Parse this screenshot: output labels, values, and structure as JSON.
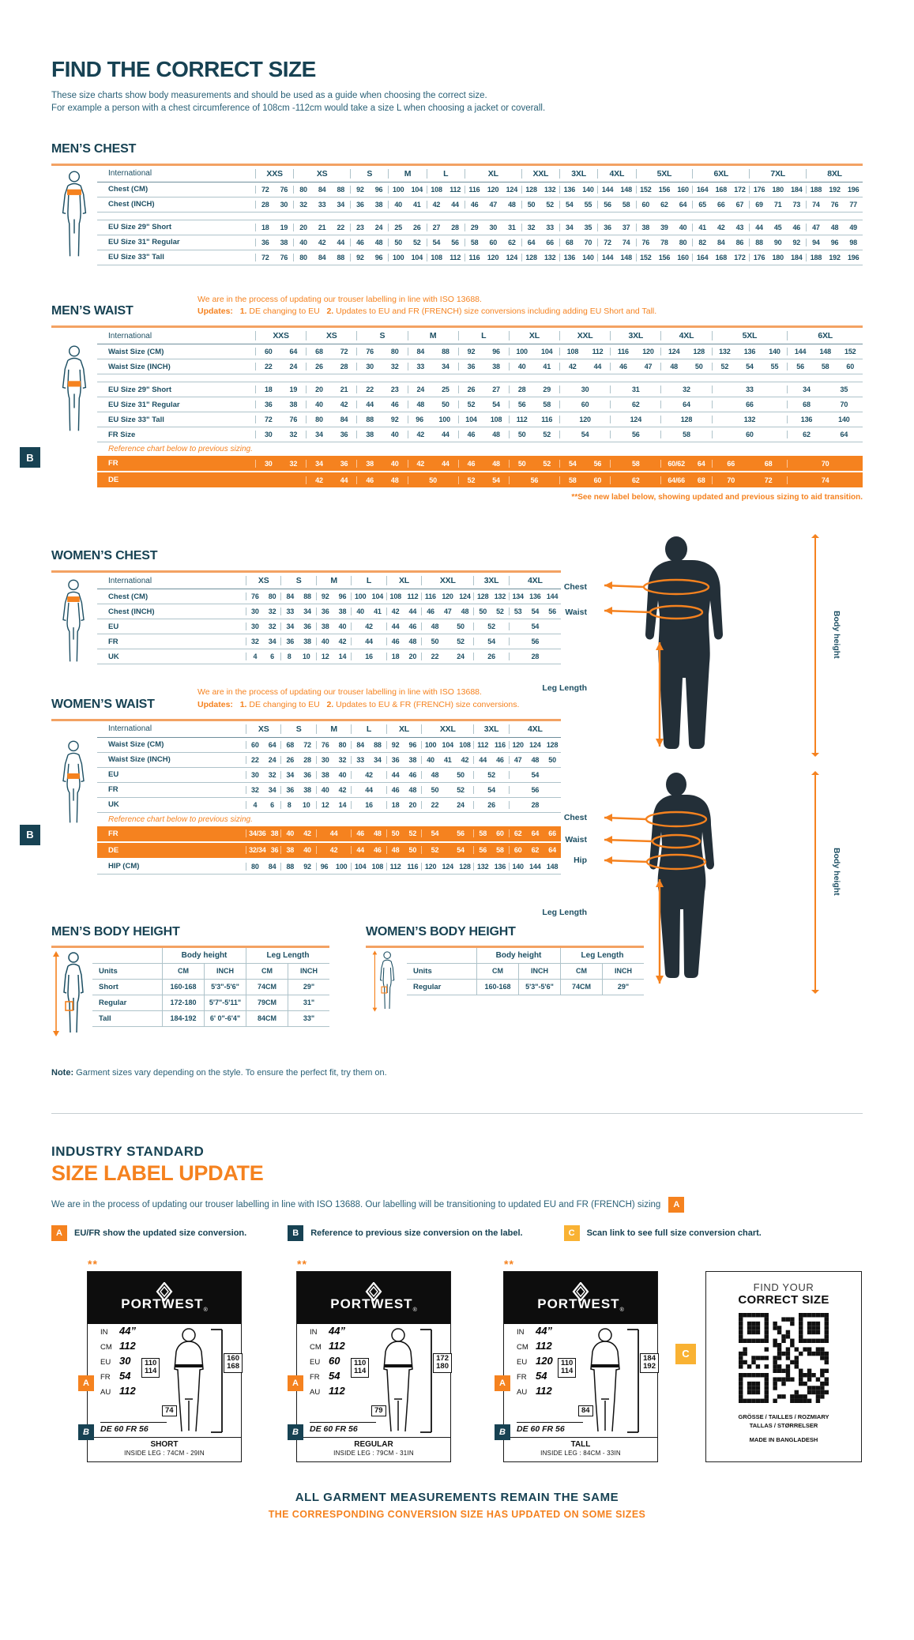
{
  "header": {
    "title": "FIND THE CORRECT SIZE",
    "lead1": "These size charts show body measurements and should be used as a guide when choosing the correct size.",
    "lead2": "For example a person with a chest circumference of 108cm -112cm would take a size L when choosing a jacket or coverall."
  },
  "tables": {
    "mens_chest": {
      "title": "MEN’S CHEST",
      "label_header": "International",
      "label_w": 200,
      "columns": [
        {
          "label": "XXS",
          "span": 2
        },
        {
          "label": "XS",
          "span": 3
        },
        {
          "label": "S",
          "span": 2
        },
        {
          "label": "M",
          "span": 2
        },
        {
          "label": "L",
          "span": 2
        },
        {
          "label": "XL",
          "span": 3
        },
        {
          "label": "XXL",
          "span": 2
        },
        {
          "label": "3XL",
          "span": 2
        },
        {
          "label": "4XL",
          "span": 2
        },
        {
          "label": "5XL",
          "span": 3
        },
        {
          "label": "6XL",
          "span": 3
        },
        {
          "label": "7XL",
          "span": 3
        },
        {
          "label": "8XL",
          "span": 3
        }
      ],
      "rows": [
        {
          "label": "Chest (CM)",
          "cells": [
            "72 76",
            "80 84 88",
            "92 96",
            "100 104",
            "108 112",
            "116 120 124",
            "128 132",
            "136 140",
            "144 148",
            "152 156 160",
            "164 168 172",
            "176 180 184",
            "188 192 196"
          ]
        },
        {
          "label": "Chest (INCH)",
          "cells": [
            "28 30",
            "32 33 34",
            "36 38",
            "40 41",
            "42 44",
            "46 47 48",
            "50 52",
            "54 55",
            "56 58",
            "60 62 64",
            "65 66 67",
            "69 71 73",
            "74 76 77"
          ]
        },
        {
          "type": "spacer"
        },
        {
          "label": "EU Size 29\" Short",
          "cells": [
            "18 19",
            "20 21 22",
            "23 24",
            "25 26",
            "27 28",
            "29 30 31",
            "32 33",
            "34 35",
            "36 37",
            "38 39 40",
            "41 42 43",
            "44 45 46",
            "47 48 49"
          ]
        },
        {
          "label": "EU Size 31\" Regular",
          "cells": [
            "36 38",
            "40 42 44",
            "46 48",
            "50 52",
            "54 56",
            "58 60 62",
            "64 66",
            "68 70",
            "72 74",
            "76 78 80",
            "82 84 86",
            "88 90 92",
            "94 96 98"
          ]
        },
        {
          "label": "EU Size 33\" Tall",
          "cells": [
            "72 76",
            "80 84 88",
            "92 96",
            "100 104",
            "108 112",
            "116 120 124",
            "128 132",
            "136 140",
            "144 148",
            "152 156 160",
            "164 168 172",
            "176 180 184",
            "188 192 196"
          ]
        }
      ]
    },
    "mens_waist": {
      "title": "MEN’S WAIST",
      "label_header": "International",
      "label_w": 200,
      "note": {
        "line1": "We are in the process of updating our trouser labelling in line with ISO 13688.",
        "updates_label": "Updates:",
        "item1_num": "1.",
        "item1": "DE changing to EU",
        "item2_num": "2.",
        "item2": "Updates to EU and FR (FRENCH) size conversions including adding EU Short and Tall."
      },
      "reference_text": "Reference chart below to previous sizing.",
      "badge_b": "B",
      "footnote": "**See new label below, showing updated and previous sizing to aid transition.",
      "columns": [
        {
          "label": "XXS",
          "span": 2
        },
        {
          "label": "XS",
          "span": 2
        },
        {
          "label": "S",
          "span": 2
        },
        {
          "label": "M",
          "span": 2
        },
        {
          "label": "L",
          "span": 2
        },
        {
          "label": "XL",
          "span": 2
        },
        {
          "label": "XXL",
          "span": 2
        },
        {
          "label": "3XL",
          "span": 2
        },
        {
          "label": "4XL",
          "span": 2
        },
        {
          "label": "5XL",
          "span": 3
        },
        {
          "label": "6XL",
          "span": 3
        }
      ],
      "rows": [
        {
          "label": "Waist Size (CM)",
          "cells": [
            "60 64",
            "68 72",
            "76 80",
            "84 88",
            "92 96",
            "100 104",
            "108 112",
            "116 120",
            "124 128",
            "132 136 140",
            "144 148 152"
          ]
        },
        {
          "label": "Waist Size (INCH)",
          "cells": [
            "22 24",
            "26 28",
            "30 32",
            "33 34",
            "36 38",
            "40 41",
            "42 44",
            "46 47",
            "48 50",
            "52 54 55",
            "56 58 60"
          ]
        },
        {
          "type": "spacer"
        },
        {
          "label": "EU Size 29\" Short",
          "cells": [
            "18 19",
            "20 21",
            "22 23",
            "24 25",
            "26 27",
            "28 29",
            "30",
            "31",
            "32",
            "33",
            "34 35"
          ]
        },
        {
          "label": "EU Size 31\" Regular",
          "cells": [
            "36 38",
            "40 42",
            "44 46",
            "48 50",
            "52 54",
            "56 58",
            "60",
            "62",
            "64",
            "66",
            "68 70"
          ]
        },
        {
          "label": "EU Size 33\" Tall",
          "cells": [
            "72 76",
            "80 84",
            "88 92",
            "96 100",
            "104 108",
            "112 116",
            "120",
            "124",
            "128",
            "132",
            "136 140"
          ]
        },
        {
          "label": "FR Size",
          "cells": [
            "30 32",
            "34 36",
            "38 40",
            "42 44",
            "46 48",
            "50 52",
            "54",
            "56",
            "58",
            "60",
            "62 64"
          ]
        },
        {
          "type": "ref"
        },
        {
          "label": "FR",
          "variant": "orange",
          "cells": [
            "30 32",
            "34 36",
            "38 40",
            "42 44",
            "46 48",
            "50 52",
            "54 56",
            "58",
            "60/62 64",
            "66 68",
            "70"
          ]
        },
        {
          "label": "DE",
          "variant": "orange",
          "cells": [
            "",
            "42 44",
            "46 48",
            "50",
            "52 54",
            "56",
            "58 60",
            "62",
            "64/66 68",
            "70 72",
            "74"
          ]
        }
      ]
    },
    "womens_chest": {
      "title": "WOMEN’S CHEST",
      "label_header": "International",
      "label_w": 188,
      "columns": [
        {
          "label": "XS",
          "span": 2
        },
        {
          "label": "S",
          "span": 2
        },
        {
          "label": "M",
          "span": 2
        },
        {
          "label": "L",
          "span": 2
        },
        {
          "label": "XL",
          "span": 2
        },
        {
          "label": "XXL",
          "span": 3
        },
        {
          "label": "3XL",
          "span": 2
        },
        {
          "label": "4XL",
          "span": 3
        }
      ],
      "rows": [
        {
          "label": "Chest (CM)",
          "cells": [
            "76 80",
            "84 88",
            "92 96",
            "100 104",
            "108 112",
            "116 120 124",
            "128 132",
            "134 136 144"
          ]
        },
        {
          "label": "Chest (INCH)",
          "cells": [
            "30 32",
            "33 34",
            "36 38",
            "40 41",
            "42 44",
            "46 47 48",
            "50 52",
            "53 54 56"
          ]
        },
        {
          "label": "EU",
          "cells": [
            "30 32",
            "34 36",
            "38 40",
            "42",
            "44 46",
            "48 50",
            "52",
            "54"
          ]
        },
        {
          "label": "FR",
          "cells": [
            "32 34",
            "36 38",
            "40 42",
            "44",
            "46 48",
            "50 52",
            "54",
            "56"
          ]
        },
        {
          "label": "UK",
          "cells": [
            "4 6",
            "8 10",
            "12 14",
            "16",
            "18 20",
            "22 24",
            "26",
            "28"
          ]
        }
      ]
    },
    "womens_waist": {
      "title": "WOMEN’S WAIST",
      "label_header": "International",
      "label_w": 188,
      "note": {
        "line1": "We are in the process of updating our trouser labelling in line with ISO 13688.",
        "updates_label": "Updates:",
        "item1_num": "1.",
        "item1": "DE changing to EU",
        "item2_num": "2.",
        "item2": "Updates to EU & FR (FRENCH) size conversions."
      },
      "reference_text": "Reference chart below to previous sizing.",
      "badge_b": "B",
      "columns": [
        {
          "label": "XS",
          "span": 2
        },
        {
          "label": "S",
          "span": 2
        },
        {
          "label": "M",
          "span": 2
        },
        {
          "label": "L",
          "span": 2
        },
        {
          "label": "XL",
          "span": 2
        },
        {
          "label": "XXL",
          "span": 3
        },
        {
          "label": "3XL",
          "span": 2
        },
        {
          "label": "4XL",
          "span": 3
        }
      ],
      "rows": [
        {
          "label": "Waist Size (CM)",
          "cells": [
            "60 64",
            "68 72",
            "76 80",
            "84 88",
            "92 96",
            "100 104 108",
            "112 116",
            "120 124 128"
          ]
        },
        {
          "label": "Waist Size (INCH)",
          "cells": [
            "22 24",
            "26 28",
            "30 32",
            "33 34",
            "36 38",
            "40 41 42",
            "44 46",
            "47 48 50"
          ]
        },
        {
          "label": "EU",
          "cells": [
            "30 32",
            "34 36",
            "38 40",
            "42",
            "44 46",
            "48 50",
            "52",
            "54"
          ]
        },
        {
          "label": "FR",
          "cells": [
            "32 34",
            "36 38",
            "40 42",
            "44",
            "46 48",
            "50 52",
            "54",
            "56"
          ]
        },
        {
          "label": "UK",
          "cells": [
            "4 6",
            "8 10",
            "12 14",
            "16",
            "18 20",
            "22 24",
            "26",
            "28"
          ]
        },
        {
          "type": "ref"
        },
        {
          "label": "FR",
          "variant": "orange",
          "cells": [
            "34/36 38",
            "40 42",
            "44",
            "46 48",
            "50 52",
            "54 56",
            "58 60",
            "62 64 66"
          ]
        },
        {
          "label": "DE",
          "variant": "orange",
          "cells": [
            "32/34 36",
            "38 40",
            "42",
            "44 46",
            "48 50",
            "52 54",
            "56 58",
            "60 62 64"
          ]
        },
        {
          "label": "HIP (CM)",
          "cells": [
            "80 84",
            "88 92",
            "96 100",
            "104 108",
            "112 116",
            "120 124 128",
            "132 136",
            "140 144 148"
          ]
        }
      ]
    }
  },
  "figures": {
    "male": {
      "chest": "Chest",
      "waist": "Waist",
      "leg": "Leg Length",
      "height": "Body height"
    },
    "female": {
      "chest": "Chest",
      "waist": "Waist",
      "hip": "Hip",
      "leg": "Leg Length",
      "height": "Body height"
    }
  },
  "body_height": {
    "mens": {
      "title": "MEN’S BODY HEIGHT",
      "group1": "Body height",
      "group2": "Leg Length",
      "units_label": "Units",
      "cols": [
        "CM",
        "INCH",
        "CM",
        "INCH"
      ],
      "rows": [
        {
          "label": "Short",
          "cells": [
            "160-168",
            "5'3\"-5'6\"",
            "74CM",
            "29\""
          ]
        },
        {
          "label": "Regular",
          "cells": [
            "172-180",
            "5'7\"-5'11\"",
            "79CM",
            "31\""
          ]
        },
        {
          "label": "Tall",
          "cells": [
            "184-192",
            "6' 0\"-6'4\"",
            "84CM",
            "33\""
          ]
        }
      ]
    },
    "womens": {
      "title": "WOMEN’S BODY HEIGHT",
      "group1": "Body height",
      "group2": "Leg Length",
      "units_label": "Units",
      "cols": [
        "CM",
        "INCH",
        "CM",
        "INCH"
      ],
      "rows": [
        {
          "label": "Regular",
          "cells": [
            "160-168",
            "5'3\"-5'6\"",
            "74CM",
            "29\""
          ]
        }
      ]
    }
  },
  "note": {
    "bold": "Note:",
    "text": " Garment sizes vary depending on the style. To ensure the perfect fit, try them on."
  },
  "industry": {
    "title1": "INDUSTRY STANDARD",
    "title2": "SIZE LABEL UPDATE",
    "para": "We are in the process of updating our trouser labelling in line with ISO 13688. Our labelling will be transitioning to updated EU and FR (FRENCH) sizing",
    "badges": [
      {
        "letter": "A",
        "text": "EU/FR show the updated size conversion."
      },
      {
        "letter": "B",
        "text": "Reference to previous size conversion on the label."
      },
      {
        "letter": "C",
        "text": "Scan link to see full size conversion chart."
      }
    ]
  },
  "labels": {
    "stars": "**",
    "brand": "PORTWEST",
    "reg": "®",
    "fields": [
      "IN",
      "CM",
      "EU",
      "FR",
      "AU"
    ],
    "cards": [
      {
        "values": [
          "44”",
          "112",
          "30",
          "54",
          "112"
        ],
        "b_line": "DE 60 FR 56",
        "waist_box": [
          "110",
          "114"
        ],
        "height_box": [
          "160",
          "168"
        ],
        "leg_box": "74",
        "fit": "SHORT",
        "inside_leg": "INSIDE LEG : 74CM - 29IN"
      },
      {
        "values": [
          "44”",
          "112",
          "60",
          "54",
          "112"
        ],
        "b_line": "DE 60 FR 56",
        "waist_box": [
          "110",
          "114"
        ],
        "height_box": [
          "172",
          "180"
        ],
        "leg_box": "79",
        "fit": "REGULAR",
        "inside_leg": "INSIDE LEG : 79CM - 31IN"
      },
      {
        "values": [
          "44”",
          "112",
          "120",
          "54",
          "112"
        ],
        "b_line": "DE 60 FR 56",
        "waist_box": [
          "110",
          "114"
        ],
        "height_box": [
          "184",
          "192"
        ],
        "leg_box": "84",
        "fit": "TALL",
        "inside_leg": "INSIDE LEG : 84CM - 33IN"
      }
    ],
    "qr_card": {
      "line1": "FIND YOUR",
      "line2": "CORRECT SIZE",
      "langs1": "GRÖSSE / TAILLES / ROZMIARY",
      "langs2": "TALLAS / STØRRELSER",
      "made": "MADE IN BANGLADESH"
    }
  },
  "footer": {
    "line1": "ALL GARMENT MEASUREMENTS REMAIN THE SAME",
    "line2": "THE CORRESPONDING CONVERSION SIZE HAS UPDATED ON SOME SIZES"
  }
}
